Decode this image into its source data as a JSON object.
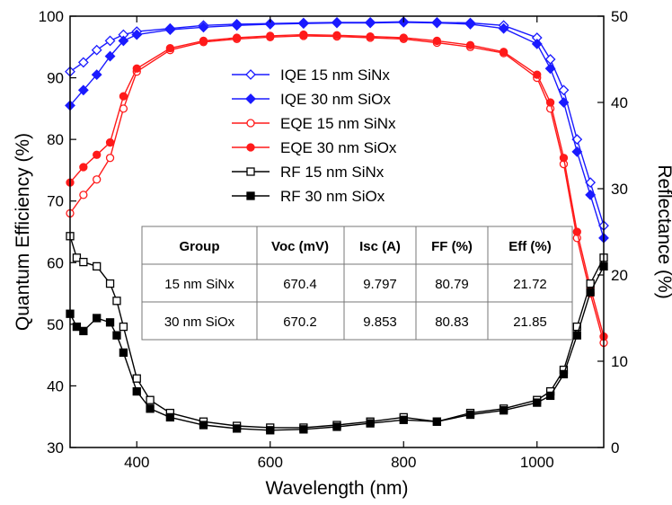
{
  "chart_data": {
    "type": "line",
    "xlabel": "Wavelength (nm)",
    "ylabel": "Quantum Efficiency (%)",
    "y2label": "Reflectance (%)",
    "xlim": [
      300,
      1100
    ],
    "ylim": [
      30,
      100
    ],
    "y2lim": [
      0,
      50
    ],
    "x_ticks": [
      "400",
      "600",
      "800",
      "1000"
    ],
    "y_ticks": [
      "30",
      "40",
      "50",
      "60",
      "70",
      "80",
      "90",
      "100"
    ],
    "y2_ticks": [
      "0",
      "10",
      "20",
      "30",
      "40",
      "50"
    ],
    "grid": false,
    "legend_position": "top-center",
    "series": [
      {
        "name": "IQE 15 nm SiNx",
        "axis": "left",
        "color": "#1a1aff",
        "marker": "diamond",
        "filled": false,
        "x": [
          300,
          320,
          340,
          360,
          380,
          400,
          450,
          500,
          550,
          600,
          650,
          700,
          750,
          800,
          850,
          900,
          950,
          1000,
          1020,
          1040,
          1060,
          1080,
          1100
        ],
        "values": [
          91,
          92.5,
          94.5,
          96,
          97,
          97.5,
          98,
          98.5,
          98.7,
          98.8,
          98.9,
          99,
          99,
          99.1,
          99,
          98.9,
          98.5,
          96.5,
          93,
          88,
          80,
          73,
          66
        ]
      },
      {
        "name": "IQE 30 nm SiOx",
        "axis": "left",
        "color": "#1a1aff",
        "marker": "diamond",
        "filled": true,
        "x": [
          300,
          320,
          340,
          360,
          380,
          400,
          450,
          500,
          550,
          600,
          650,
          700,
          750,
          800,
          850,
          900,
          950,
          1000,
          1020,
          1040,
          1060,
          1080,
          1100
        ],
        "values": [
          85.5,
          88,
          90.5,
          93.5,
          96,
          97,
          97.8,
          98.2,
          98.5,
          98.7,
          98.8,
          98.9,
          98.9,
          99,
          98.9,
          98.7,
          98,
          95.5,
          91.5,
          86,
          78,
          71,
          64
        ]
      },
      {
        "name": "EQE 15 nm SiNx",
        "axis": "left",
        "color": "#ff1a1a",
        "marker": "circle",
        "filled": false,
        "x": [
          300,
          320,
          340,
          360,
          380,
          400,
          450,
          500,
          550,
          600,
          650,
          700,
          750,
          800,
          850,
          900,
          950,
          1000,
          1020,
          1040,
          1060,
          1080,
          1100
        ],
        "values": [
          68,
          71,
          73.5,
          77,
          85,
          91,
          94.5,
          95.8,
          96.3,
          96.6,
          96.8,
          96.7,
          96.5,
          96.3,
          95.7,
          95,
          94,
          90,
          85,
          76,
          64,
          55,
          47
        ]
      },
      {
        "name": "EQE 30 nm SiOx",
        "axis": "left",
        "color": "#ff1a1a",
        "marker": "circle",
        "filled": true,
        "x": [
          300,
          320,
          340,
          360,
          380,
          400,
          450,
          500,
          550,
          600,
          650,
          700,
          750,
          800,
          850,
          900,
          950,
          1000,
          1020,
          1040,
          1060,
          1080,
          1100
        ],
        "values": [
          73,
          75.5,
          77.5,
          79.5,
          87,
          91.5,
          94.8,
          96,
          96.5,
          96.8,
          97,
          96.9,
          96.7,
          96.5,
          96,
          95.3,
          94.2,
          90.5,
          86,
          77,
          65,
          56,
          48
        ]
      },
      {
        "name": "RF 15 nm SiNx",
        "axis": "right",
        "color": "#000000",
        "marker": "square",
        "filled": false,
        "x": [
          300,
          310,
          320,
          340,
          360,
          370,
          380,
          400,
          420,
          450,
          500,
          550,
          600,
          650,
          700,
          750,
          800,
          850,
          900,
          950,
          1000,
          1020,
          1040,
          1060,
          1080,
          1100
        ],
        "values": [
          24.5,
          22,
          21.5,
          21,
          19,
          17,
          14,
          8,
          5.5,
          4,
          3,
          2.5,
          2.3,
          2.3,
          2.6,
          3,
          3.5,
          3,
          4,
          4.5,
          5.5,
          6.5,
          9,
          14,
          19,
          22
        ]
      },
      {
        "name": "RF 30 nm SiOx",
        "axis": "right",
        "color": "#000000",
        "marker": "square",
        "filled": true,
        "x": [
          300,
          310,
          320,
          340,
          360,
          370,
          380,
          400,
          420,
          450,
          500,
          550,
          600,
          650,
          700,
          750,
          800,
          850,
          900,
          950,
          1000,
          1020,
          1040,
          1060,
          1080,
          1100
        ],
        "values": [
          15.5,
          14,
          13.5,
          15,
          14.5,
          13,
          11,
          6.5,
          4.5,
          3.5,
          2.6,
          2.2,
          2,
          2.1,
          2.4,
          2.8,
          3.2,
          3,
          3.8,
          4.3,
          5.2,
          6,
          8.5,
          13,
          18,
          21
        ]
      }
    ],
    "table": {
      "headers": [
        "Group",
        "Voc (mV)",
        "Isc (A)",
        "FF (%)",
        "Eff (%)"
      ],
      "rows": [
        [
          "15 nm SiNx",
          "670.4",
          "9.797",
          "80.79",
          "21.72"
        ],
        [
          "30 nm SiOx",
          "670.2",
          "9.853",
          "80.83",
          "21.85"
        ]
      ]
    }
  }
}
